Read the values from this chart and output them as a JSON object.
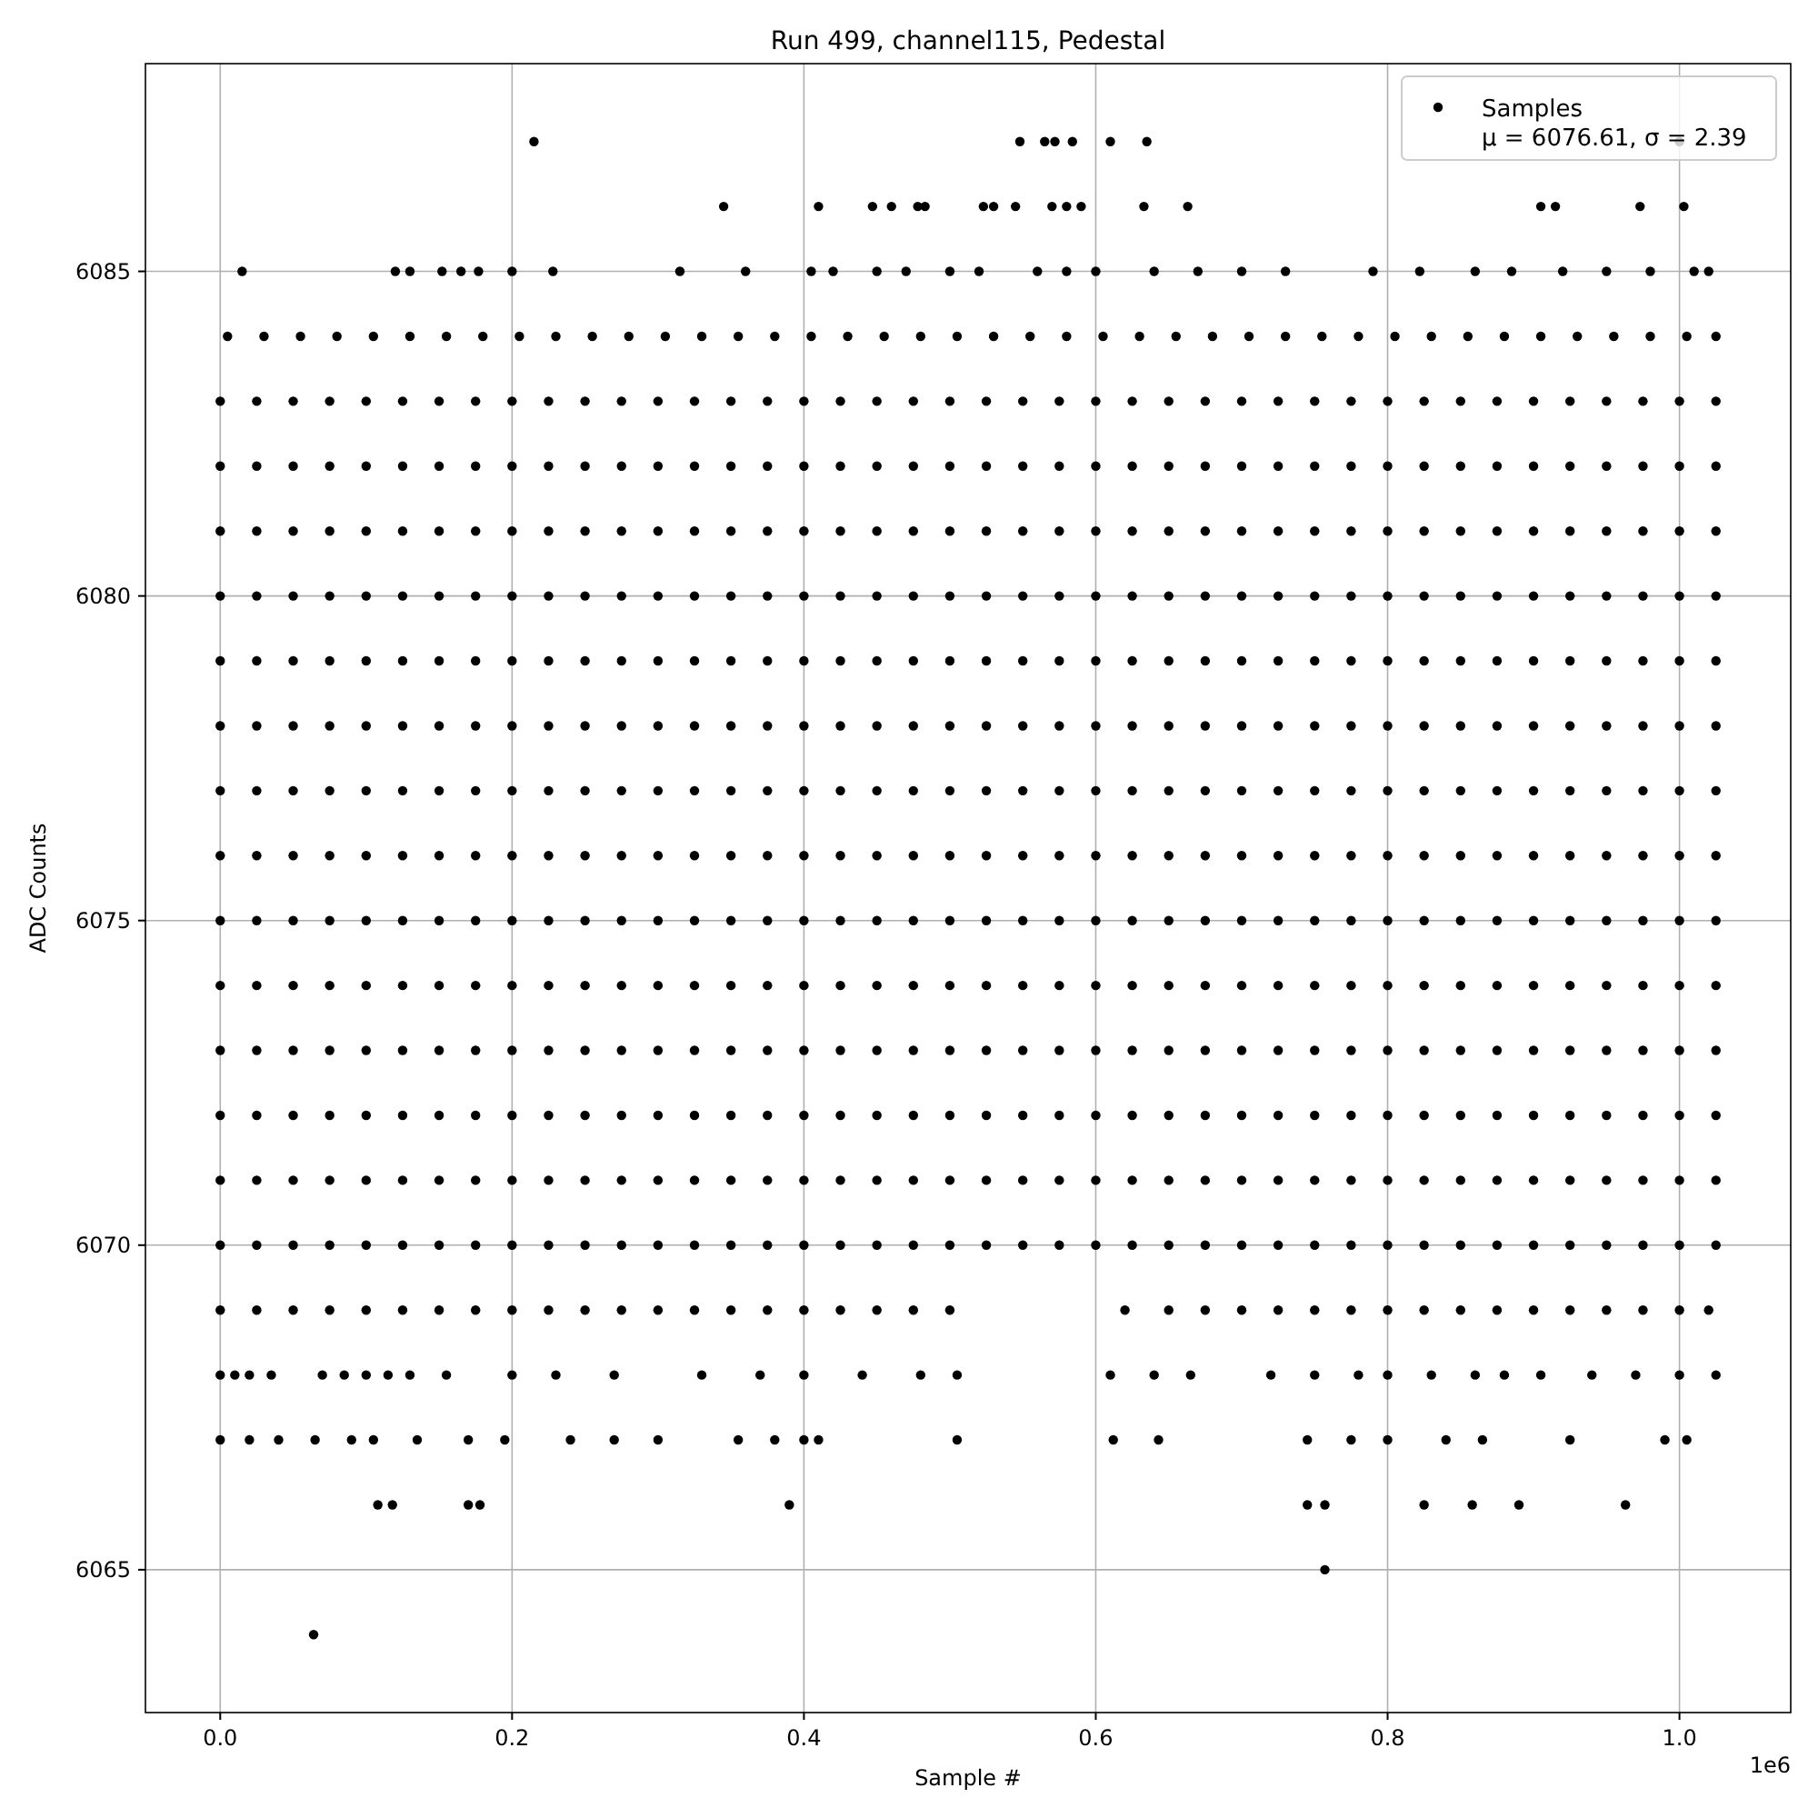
{
  "chart_data": {
    "type": "scatter",
    "title": "Run 499, channel115, Pedestal",
    "xlabel": "Sample #",
    "ylabel": "ADC Counts",
    "annotations": [
      "1e6"
    ],
    "xlim": [
      -0.05125,
      1.07625
    ],
    "xticks": [
      {
        "value": 0,
        "label": "0.0"
      },
      0.2,
      0.4,
      0.6,
      0.8,
      {
        "value": 1,
        "label": "1.0"
      }
    ],
    "ylim": [
      6062.8,
      6088.2
    ],
    "yticks": [
      6065,
      6070,
      6075,
      6080,
      6085
    ],
    "grid": true,
    "legend": "top right",
    "marker": "circle",
    "series": [
      {
        "name": "Samples\nμ = 6076.61, σ = 2.39",
        "color": "#000000",
        "x": [
          0.215,
          0.548,
          0.565,
          0.572,
          0.584,
          0.61,
          0.635,
          1.0,
          0.345,
          0.41,
          0.447,
          0.46,
          0.478,
          0.483,
          0.523,
          0.53,
          0.545,
          0.57,
          0.58,
          0.59,
          0.633,
          0.663,
          0.905,
          0.915,
          0.973,
          1.003,
          0.015,
          0.12,
          0.13,
          0.152,
          0.165,
          0.177,
          0.2,
          0.228,
          0.315,
          0.36,
          0.405,
          0.42,
          0.45,
          0.47,
          0.5,
          0.52,
          0.56,
          0.58,
          0.6,
          0.64,
          0.67,
          0.7,
          0.73,
          0.79,
          0.822,
          0.86,
          0.885,
          0.92,
          0.95,
          0.98,
          1.01,
          1.02,
          0,
          0.01,
          0.02,
          0.035,
          0.07,
          0.085,
          0.1,
          0.115,
          0.13,
          0.155,
          0.2,
          0.23,
          0.27,
          0.33,
          0.37,
          0.4,
          0.44,
          0.48,
          0.505,
          0.61,
          0.64,
          0.665,
          0.72,
          0.75,
          0.78,
          0.8,
          0.83,
          0.86,
          0.88,
          0.905,
          0.94,
          0.97,
          1.0,
          1.025,
          0,
          0.02,
          0.04,
          0.065,
          0.09,
          0.105,
          0.135,
          0.17,
          0.195,
          0.24,
          0.27,
          0.3,
          0.355,
          0.38,
          0.4,
          0.41,
          0.505,
          0.612,
          0.643,
          0.745,
          0.775,
          0.8,
          0.84,
          0.865,
          0.925,
          0.99,
          1.005,
          0.108,
          0.118,
          0.17,
          0.178,
          0.39,
          0.745,
          0.757,
          0.825,
          0.858,
          0.89,
          0.963,
          0.757,
          0.064
        ],
        "values": [
          6087,
          6087,
          6087,
          6087,
          6087,
          6087,
          6087,
          6087,
          6086,
          6086,
          6086,
          6086,
          6086,
          6086,
          6086,
          6086,
          6086,
          6086,
          6086,
          6086,
          6086,
          6086,
          6086,
          6086,
          6086,
          6086,
          6085,
          6085,
          6085,
          6085,
          6085,
          6085,
          6085,
          6085,
          6085,
          6085,
          6085,
          6085,
          6085,
          6085,
          6085,
          6085,
          6085,
          6085,
          6085,
          6085,
          6085,
          6085,
          6085,
          6085,
          6085,
          6085,
          6085,
          6085,
          6085,
          6085,
          6085,
          6085,
          6068,
          6068,
          6068,
          6068,
          6068,
          6068,
          6068,
          6068,
          6068,
          6068,
          6068,
          6068,
          6068,
          6068,
          6068,
          6068,
          6068,
          6068,
          6068,
          6068,
          6068,
          6068,
          6068,
          6068,
          6068,
          6068,
          6068,
          6068,
          6068,
          6068,
          6068,
          6068,
          6068,
          6068,
          6067,
          6067,
          6067,
          6067,
          6067,
          6067,
          6067,
          6067,
          6067,
          6067,
          6067,
          6067,
          6067,
          6067,
          6067,
          6067,
          6067,
          6067,
          6067,
          6067,
          6067,
          6067,
          6067,
          6067,
          6067,
          6067,
          6067,
          6066,
          6066,
          6066,
          6066,
          6066,
          6066,
          6066,
          6066,
          6066,
          6066,
          6066,
          6065,
          6064
        ]
      },
      {
        "color": "#000000",
        "x": [
          0.005,
          0.03,
          0.055,
          0.08,
          0.105,
          0.13,
          0.155,
          0.18,
          0.205,
          0.23,
          0.255,
          0.28,
          0.305,
          0.33,
          0.355,
          0.38,
          0.405,
          0.43,
          0.455,
          0.48,
          0.505,
          0.53,
          0.555,
          0.58,
          0.605,
          0.63,
          0.655,
          0.68,
          0.705,
          0.73,
          0.755,
          0.78,
          0.805,
          0.83,
          0.855,
          0.88,
          0.905,
          0.93,
          0.955,
          0.98,
          1.005,
          1.025
        ],
        "values": [
          6084,
          6084,
          6084,
          6084,
          6084,
          6084,
          6084,
          6084,
          6084,
          6084,
          6084,
          6084,
          6084,
          6084,
          6084,
          6084,
          6084,
          6084,
          6084,
          6084,
          6084,
          6084,
          6084,
          6084,
          6084,
          6084,
          6084,
          6084,
          6084,
          6084,
          6084,
          6084,
          6084,
          6084,
          6084,
          6084,
          6084,
          6084,
          6084,
          6084,
          6084,
          6084
        ]
      },
      {
        "color": "#000000",
        "x": [
          0,
          0.025,
          0.05,
          0.075,
          0.1,
          0.125,
          0.15,
          0.175,
          0.2,
          0.225,
          0.25,
          0.275,
          0.3,
          0.325,
          0.35,
          0.375,
          0.4,
          0.425,
          0.45,
          0.475,
          0.5,
          0.525,
          0.55,
          0.575,
          0.6,
          0.625,
          0.65,
          0.675,
          0.7,
          0.725,
          0.75,
          0.775,
          0.8,
          0.825,
          0.85,
          0.875,
          0.9,
          0.925,
          0.95,
          0.975,
          1.0,
          1.025
        ],
        "values": [
          6083,
          6083,
          6083,
          6083,
          6083,
          6083,
          6083,
          6083,
          6083,
          6083,
          6083,
          6083,
          6083,
          6083,
          6083,
          6083,
          6083,
          6083,
          6083,
          6083,
          6083,
          6083,
          6083,
          6083,
          6083,
          6083,
          6083,
          6083,
          6083,
          6083,
          6083,
          6083,
          6083,
          6083,
          6083,
          6083,
          6083,
          6083,
          6083,
          6083,
          6083,
          6083
        ]
      },
      {
        "color": "#000000",
        "x": [
          0,
          0.025,
          0.05,
          0.075,
          0.1,
          0.125,
          0.15,
          0.175,
          0.2,
          0.225,
          0.25,
          0.275,
          0.3,
          0.325,
          0.35,
          0.375,
          0.4,
          0.425,
          0.45,
          0.475,
          0.5,
          0.525,
          0.55,
          0.575,
          0.6,
          0.625,
          0.65,
          0.675,
          0.7,
          0.725,
          0.75,
          0.775,
          0.8,
          0.825,
          0.85,
          0.875,
          0.9,
          0.925,
          0.95,
          0.975,
          1.0,
          1.025
        ],
        "values": [
          6082,
          6082,
          6082,
          6082,
          6082,
          6082,
          6082,
          6082,
          6082,
          6082,
          6082,
          6082,
          6082,
          6082,
          6082,
          6082,
          6082,
          6082,
          6082,
          6082,
          6082,
          6082,
          6082,
          6082,
          6082,
          6082,
          6082,
          6082,
          6082,
          6082,
          6082,
          6082,
          6082,
          6082,
          6082,
          6082,
          6082,
          6082,
          6082,
          6082,
          6082,
          6082
        ]
      },
      {
        "color": "#000000",
        "x": [
          0,
          0.025,
          0.05,
          0.075,
          0.1,
          0.125,
          0.15,
          0.175,
          0.2,
          0.225,
          0.25,
          0.275,
          0.3,
          0.325,
          0.35,
          0.375,
          0.4,
          0.425,
          0.45,
          0.475,
          0.5,
          0.525,
          0.55,
          0.575,
          0.6,
          0.625,
          0.65,
          0.675,
          0.7,
          0.725,
          0.75,
          0.775,
          0.8,
          0.825,
          0.85,
          0.875,
          0.9,
          0.925,
          0.95,
          0.975,
          1.0,
          1.025
        ],
        "values": [
          6081,
          6081,
          6081,
          6081,
          6081,
          6081,
          6081,
          6081,
          6081,
          6081,
          6081,
          6081,
          6081,
          6081,
          6081,
          6081,
          6081,
          6081,
          6081,
          6081,
          6081,
          6081,
          6081,
          6081,
          6081,
          6081,
          6081,
          6081,
          6081,
          6081,
          6081,
          6081,
          6081,
          6081,
          6081,
          6081,
          6081,
          6081,
          6081,
          6081,
          6081,
          6081
        ]
      },
      {
        "color": "#000000",
        "x": [
          0,
          0.025,
          0.05,
          0.075,
          0.1,
          0.125,
          0.15,
          0.175,
          0.2,
          0.225,
          0.25,
          0.275,
          0.3,
          0.325,
          0.35,
          0.375,
          0.4,
          0.425,
          0.45,
          0.475,
          0.5,
          0.525,
          0.55,
          0.575,
          0.6,
          0.625,
          0.65,
          0.675,
          0.7,
          0.725,
          0.75,
          0.775,
          0.8,
          0.825,
          0.85,
          0.875,
          0.9,
          0.925,
          0.95,
          0.975,
          1.0,
          1.025
        ],
        "values": [
          6080,
          6080,
          6080,
          6080,
          6080,
          6080,
          6080,
          6080,
          6080,
          6080,
          6080,
          6080,
          6080,
          6080,
          6080,
          6080,
          6080,
          6080,
          6080,
          6080,
          6080,
          6080,
          6080,
          6080,
          6080,
          6080,
          6080,
          6080,
          6080,
          6080,
          6080,
          6080,
          6080,
          6080,
          6080,
          6080,
          6080,
          6080,
          6080,
          6080,
          6080,
          6080
        ]
      },
      {
        "color": "#000000",
        "x": [
          0,
          0.025,
          0.05,
          0.075,
          0.1,
          0.125,
          0.15,
          0.175,
          0.2,
          0.225,
          0.25,
          0.275,
          0.3,
          0.325,
          0.35,
          0.375,
          0.4,
          0.425,
          0.45,
          0.475,
          0.5,
          0.525,
          0.55,
          0.575,
          0.6,
          0.625,
          0.65,
          0.675,
          0.7,
          0.725,
          0.75,
          0.775,
          0.8,
          0.825,
          0.85,
          0.875,
          0.9,
          0.925,
          0.95,
          0.975,
          1.0,
          1.025
        ],
        "values": [
          6079,
          6079,
          6079,
          6079,
          6079,
          6079,
          6079,
          6079,
          6079,
          6079,
          6079,
          6079,
          6079,
          6079,
          6079,
          6079,
          6079,
          6079,
          6079,
          6079,
          6079,
          6079,
          6079,
          6079,
          6079,
          6079,
          6079,
          6079,
          6079,
          6079,
          6079,
          6079,
          6079,
          6079,
          6079,
          6079,
          6079,
          6079,
          6079,
          6079,
          6079,
          6079
        ]
      },
      {
        "color": "#000000",
        "x": [
          0,
          0.025,
          0.05,
          0.075,
          0.1,
          0.125,
          0.15,
          0.175,
          0.2,
          0.225,
          0.25,
          0.275,
          0.3,
          0.325,
          0.35,
          0.375,
          0.4,
          0.425,
          0.45,
          0.475,
          0.5,
          0.525,
          0.55,
          0.575,
          0.6,
          0.625,
          0.65,
          0.675,
          0.7,
          0.725,
          0.75,
          0.775,
          0.8,
          0.825,
          0.85,
          0.875,
          0.9,
          0.925,
          0.95,
          0.975,
          1.0,
          1.025
        ],
        "values": [
          6078,
          6078,
          6078,
          6078,
          6078,
          6078,
          6078,
          6078,
          6078,
          6078,
          6078,
          6078,
          6078,
          6078,
          6078,
          6078,
          6078,
          6078,
          6078,
          6078,
          6078,
          6078,
          6078,
          6078,
          6078,
          6078,
          6078,
          6078,
          6078,
          6078,
          6078,
          6078,
          6078,
          6078,
          6078,
          6078,
          6078,
          6078,
          6078,
          6078,
          6078,
          6078
        ]
      },
      {
        "color": "#000000",
        "x": [
          0,
          0.025,
          0.05,
          0.075,
          0.1,
          0.125,
          0.15,
          0.175,
          0.2,
          0.225,
          0.25,
          0.275,
          0.3,
          0.325,
          0.35,
          0.375,
          0.4,
          0.425,
          0.45,
          0.475,
          0.5,
          0.525,
          0.55,
          0.575,
          0.6,
          0.625,
          0.65,
          0.675,
          0.7,
          0.725,
          0.75,
          0.775,
          0.8,
          0.825,
          0.85,
          0.875,
          0.9,
          0.925,
          0.95,
          0.975,
          1.0,
          1.025
        ],
        "values": [
          6077,
          6077,
          6077,
          6077,
          6077,
          6077,
          6077,
          6077,
          6077,
          6077,
          6077,
          6077,
          6077,
          6077,
          6077,
          6077,
          6077,
          6077,
          6077,
          6077,
          6077,
          6077,
          6077,
          6077,
          6077,
          6077,
          6077,
          6077,
          6077,
          6077,
          6077,
          6077,
          6077,
          6077,
          6077,
          6077,
          6077,
          6077,
          6077,
          6077,
          6077,
          6077
        ]
      },
      {
        "color": "#000000",
        "x": [
          0,
          0.025,
          0.05,
          0.075,
          0.1,
          0.125,
          0.15,
          0.175,
          0.2,
          0.225,
          0.25,
          0.275,
          0.3,
          0.325,
          0.35,
          0.375,
          0.4,
          0.425,
          0.45,
          0.475,
          0.5,
          0.525,
          0.55,
          0.575,
          0.6,
          0.625,
          0.65,
          0.675,
          0.7,
          0.725,
          0.75,
          0.775,
          0.8,
          0.825,
          0.85,
          0.875,
          0.9,
          0.925,
          0.95,
          0.975,
          1.0,
          1.025
        ],
        "values": [
          6076,
          6076,
          6076,
          6076,
          6076,
          6076,
          6076,
          6076,
          6076,
          6076,
          6076,
          6076,
          6076,
          6076,
          6076,
          6076,
          6076,
          6076,
          6076,
          6076,
          6076,
          6076,
          6076,
          6076,
          6076,
          6076,
          6076,
          6076,
          6076,
          6076,
          6076,
          6076,
          6076,
          6076,
          6076,
          6076,
          6076,
          6076,
          6076,
          6076,
          6076,
          6076
        ]
      },
      {
        "color": "#000000",
        "x": [
          0,
          0.025,
          0.05,
          0.075,
          0.1,
          0.125,
          0.15,
          0.175,
          0.2,
          0.225,
          0.25,
          0.275,
          0.3,
          0.325,
          0.35,
          0.375,
          0.4,
          0.425,
          0.45,
          0.475,
          0.5,
          0.525,
          0.55,
          0.575,
          0.6,
          0.625,
          0.65,
          0.675,
          0.7,
          0.725,
          0.75,
          0.775,
          0.8,
          0.825,
          0.85,
          0.875,
          0.9,
          0.925,
          0.95,
          0.975,
          1.0,
          1.025
        ],
        "values": [
          6075,
          6075,
          6075,
          6075,
          6075,
          6075,
          6075,
          6075,
          6075,
          6075,
          6075,
          6075,
          6075,
          6075,
          6075,
          6075,
          6075,
          6075,
          6075,
          6075,
          6075,
          6075,
          6075,
          6075,
          6075,
          6075,
          6075,
          6075,
          6075,
          6075,
          6075,
          6075,
          6075,
          6075,
          6075,
          6075,
          6075,
          6075,
          6075,
          6075,
          6075,
          6075
        ]
      },
      {
        "color": "#000000",
        "x": [
          0,
          0.025,
          0.05,
          0.075,
          0.1,
          0.125,
          0.15,
          0.175,
          0.2,
          0.225,
          0.25,
          0.275,
          0.3,
          0.325,
          0.35,
          0.375,
          0.4,
          0.425,
          0.45,
          0.475,
          0.5,
          0.525,
          0.55,
          0.575,
          0.6,
          0.625,
          0.65,
          0.675,
          0.7,
          0.725,
          0.75,
          0.775,
          0.8,
          0.825,
          0.85,
          0.875,
          0.9,
          0.925,
          0.95,
          0.975,
          1.0,
          1.025
        ],
        "values": [
          6074,
          6074,
          6074,
          6074,
          6074,
          6074,
          6074,
          6074,
          6074,
          6074,
          6074,
          6074,
          6074,
          6074,
          6074,
          6074,
          6074,
          6074,
          6074,
          6074,
          6074,
          6074,
          6074,
          6074,
          6074,
          6074,
          6074,
          6074,
          6074,
          6074,
          6074,
          6074,
          6074,
          6074,
          6074,
          6074,
          6074,
          6074,
          6074,
          6074,
          6074,
          6074
        ]
      },
      {
        "color": "#000000",
        "x": [
          0,
          0.025,
          0.05,
          0.075,
          0.1,
          0.125,
          0.15,
          0.175,
          0.2,
          0.225,
          0.25,
          0.275,
          0.3,
          0.325,
          0.35,
          0.375,
          0.4,
          0.425,
          0.45,
          0.475,
          0.5,
          0.525,
          0.55,
          0.575,
          0.6,
          0.625,
          0.65,
          0.675,
          0.7,
          0.725,
          0.75,
          0.775,
          0.8,
          0.825,
          0.85,
          0.875,
          0.9,
          0.925,
          0.95,
          0.975,
          1.0,
          1.025
        ],
        "values": [
          6073,
          6073,
          6073,
          6073,
          6073,
          6073,
          6073,
          6073,
          6073,
          6073,
          6073,
          6073,
          6073,
          6073,
          6073,
          6073,
          6073,
          6073,
          6073,
          6073,
          6073,
          6073,
          6073,
          6073,
          6073,
          6073,
          6073,
          6073,
          6073,
          6073,
          6073,
          6073,
          6073,
          6073,
          6073,
          6073,
          6073,
          6073,
          6073,
          6073,
          6073,
          6073
        ]
      },
      {
        "color": "#000000",
        "x": [
          0,
          0.025,
          0.05,
          0.075,
          0.1,
          0.125,
          0.15,
          0.175,
          0.2,
          0.225,
          0.25,
          0.275,
          0.3,
          0.325,
          0.35,
          0.375,
          0.4,
          0.425,
          0.45,
          0.475,
          0.5,
          0.525,
          0.55,
          0.575,
          0.6,
          0.625,
          0.65,
          0.675,
          0.7,
          0.725,
          0.75,
          0.775,
          0.8,
          0.825,
          0.85,
          0.875,
          0.9,
          0.925,
          0.95,
          0.975,
          1.0,
          1.025
        ],
        "values": [
          6072,
          6072,
          6072,
          6072,
          6072,
          6072,
          6072,
          6072,
          6072,
          6072,
          6072,
          6072,
          6072,
          6072,
          6072,
          6072,
          6072,
          6072,
          6072,
          6072,
          6072,
          6072,
          6072,
          6072,
          6072,
          6072,
          6072,
          6072,
          6072,
          6072,
          6072,
          6072,
          6072,
          6072,
          6072,
          6072,
          6072,
          6072,
          6072,
          6072,
          6072,
          6072
        ]
      },
      {
        "color": "#000000",
        "x": [
          0,
          0.025,
          0.05,
          0.075,
          0.1,
          0.125,
          0.15,
          0.175,
          0.2,
          0.225,
          0.25,
          0.275,
          0.3,
          0.325,
          0.35,
          0.375,
          0.4,
          0.425,
          0.45,
          0.475,
          0.5,
          0.525,
          0.55,
          0.575,
          0.6,
          0.625,
          0.65,
          0.675,
          0.7,
          0.725,
          0.75,
          0.775,
          0.8,
          0.825,
          0.85,
          0.875,
          0.9,
          0.925,
          0.95,
          0.975,
          1.0,
          1.025
        ],
        "values": [
          6071,
          6071,
          6071,
          6071,
          6071,
          6071,
          6071,
          6071,
          6071,
          6071,
          6071,
          6071,
          6071,
          6071,
          6071,
          6071,
          6071,
          6071,
          6071,
          6071,
          6071,
          6071,
          6071,
          6071,
          6071,
          6071,
          6071,
          6071,
          6071,
          6071,
          6071,
          6071,
          6071,
          6071,
          6071,
          6071,
          6071,
          6071,
          6071,
          6071,
          6071,
          6071
        ]
      },
      {
        "color": "#000000",
        "x": [
          0,
          0.025,
          0.05,
          0.075,
          0.1,
          0.125,
          0.15,
          0.175,
          0.2,
          0.225,
          0.25,
          0.275,
          0.3,
          0.325,
          0.35,
          0.375,
          0.4,
          0.425,
          0.45,
          0.475,
          0.5,
          0.525,
          0.55,
          0.575,
          0.6,
          0.625,
          0.65,
          0.675,
          0.7,
          0.725,
          0.75,
          0.775,
          0.8,
          0.825,
          0.85,
          0.875,
          0.9,
          0.925,
          0.95,
          0.975,
          1.0,
          1.025
        ],
        "values": [
          6070,
          6070,
          6070,
          6070,
          6070,
          6070,
          6070,
          6070,
          6070,
          6070,
          6070,
          6070,
          6070,
          6070,
          6070,
          6070,
          6070,
          6070,
          6070,
          6070,
          6070,
          6070,
          6070,
          6070,
          6070,
          6070,
          6070,
          6070,
          6070,
          6070,
          6070,
          6070,
          6070,
          6070,
          6070,
          6070,
          6070,
          6070,
          6070,
          6070,
          6070,
          6070
        ]
      },
      {
        "color": "#000000",
        "x": [
          0,
          0.025,
          0.05,
          0.075,
          0.1,
          0.125,
          0.15,
          0.175,
          0.2,
          0.225,
          0.25,
          0.275,
          0.3,
          0.325,
          0.35,
          0.375,
          0.4,
          0.425,
          0.45,
          0.475,
          0.5,
          0.62,
          0.65,
          0.675,
          0.7,
          0.725,
          0.75,
          0.775,
          0.8,
          0.825,
          0.85,
          0.875,
          0.9,
          0.925,
          0.95,
          0.975,
          1.0,
          1.02
        ],
        "values": [
          6069,
          6069,
          6069,
          6069,
          6069,
          6069,
          6069,
          6069,
          6069,
          6069,
          6069,
          6069,
          6069,
          6069,
          6069,
          6069,
          6069,
          6069,
          6069,
          6069,
          6069,
          6069,
          6069,
          6069,
          6069,
          6069,
          6069,
          6069,
          6069,
          6069,
          6069,
          6069,
          6069,
          6069,
          6069,
          6069,
          6069,
          6069
        ]
      }
    ]
  }
}
